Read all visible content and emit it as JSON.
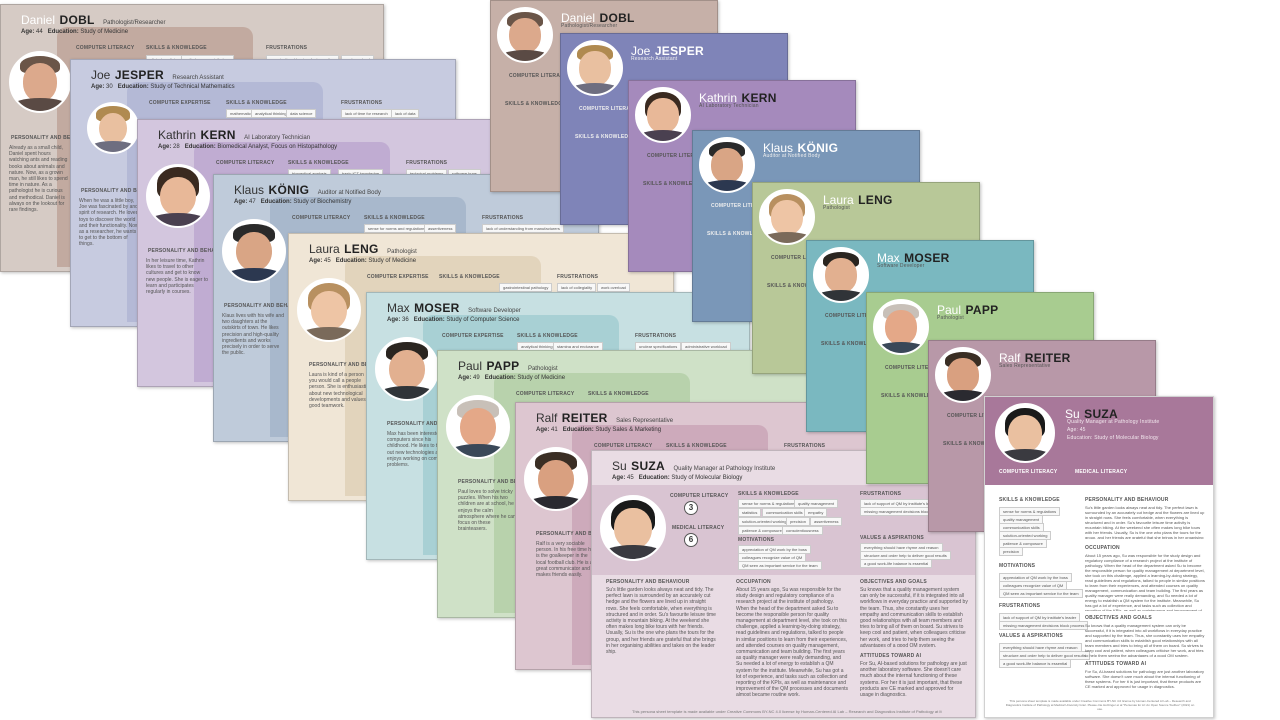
{
  "personas": [
    {
      "first": "Daniel",
      "last": "DOBL",
      "role": "Pathologist/Researcher",
      "age": "44",
      "education": "Study of Medicine"
    },
    {
      "first": "Joe",
      "last": "JESPER",
      "role": "Research Assistant",
      "age": "30",
      "education": "Study of Technical Mathematics"
    },
    {
      "first": "Kathrin",
      "last": "KERN",
      "role": "AI Laboratory Technician",
      "age": "28",
      "education": "Biomedical Analyst, Focus on Histopathology"
    },
    {
      "first": "Klaus",
      "last": "KÖNIG",
      "role": "Auditor at Notified Body",
      "age": "47",
      "education": "Study of Biochemistry"
    },
    {
      "first": "Laura",
      "last": "LENG",
      "role": "Pathologist",
      "age": "45",
      "education": "Study of Medicine"
    },
    {
      "first": "Max",
      "last": "MOSER",
      "role": "Software Developer",
      "age": "36",
      "education": "Study of Computer Science"
    },
    {
      "first": "Paul",
      "last": "PAPP",
      "role": "Pathologist",
      "age": "49",
      "education": "Study of Medicine"
    },
    {
      "first": "Ralf",
      "last": "REITER",
      "role": "Sales Representative",
      "age": "41",
      "education": "Study Sales & Marketing"
    },
    {
      "first": "Su",
      "last": "SUZA",
      "role": "Quality Manager at Pathology Institute",
      "age": "45",
      "education": "Study of Molecular Biology"
    }
  ],
  "labels": {
    "age": "Age:",
    "education": "Education:",
    "computer_literacy": "COMPUTER LITERACY",
    "computer_expertise": "COMPUTER EXPERTISE",
    "medical_literacy": "MEDICAL LITERACY",
    "skills": "SKILLS & KNOWLEDGE",
    "frustrations": "FRUSTRATIONS",
    "personality": "PERSONALITY AND BEHAVIOUR",
    "occupation": "OCCUPATION",
    "motivations": "MOTIVATIONS",
    "values": "VALUES & ASPIRATIONS",
    "objectives": "OBJECTIVES AND GOALS",
    "attitudes": "ATTITUDES TOWARD AI"
  },
  "tags": {
    "dobl_skills": [
      "clinical medicine",
      "pathology - specialty lung"
    ],
    "dobl_frustrations": [
      "organisational barriers for innovation",
      "work overload"
    ],
    "jesper_skills": [
      "mathematics",
      "analytical thinking",
      "data science"
    ],
    "jesper_frustrations": [
      "lack of time for research",
      "lack of data"
    ],
    "kern_skills": [
      "biomedical analysis",
      "basic ICT knowledge"
    ],
    "kern_frustrations": [
      "technical problems",
      "software bugs"
    ],
    "konig_skills": [
      "sense for norms and regulations",
      "assertiveness"
    ],
    "konig_frustrations": [
      "lack of understanding from manufacturers"
    ],
    "leng_skills": [
      "gastrointestinal pathology"
    ],
    "leng_frustrations": [
      "lack of collegiality",
      "work overload"
    ],
    "moser_skills": [
      "analytical thinking",
      "stamina and endurance"
    ],
    "moser_frustrations": [
      "unclear specifications",
      "administrative workload"
    ],
    "suza_skills": [
      "sense for norms & regulations",
      "quality management",
      "statistics",
      "communication skills",
      "empathy",
      "solution-oriented working",
      "precision",
      "assertiveness",
      "patience & composure",
      "conscientiousness"
    ],
    "suza_frustrations": [
      "lack of support of QM by institute's leader",
      "missing management decisions block process"
    ],
    "suza_motivations": [
      "appreciation of QM work by the boss",
      "colleagues recognize value of QM",
      "QM seen as important service for the team"
    ],
    "suza_values": [
      "everything should have rhyme and reason",
      "structure and order help to deliver good results",
      "a good work-life balance is essential"
    ]
  },
  "gauges": {
    "suza_computer": "3",
    "suza_medical": "6"
  },
  "texts": {
    "dobl_personality": "Already as a small child, Daniel spent hours watching ants and reading books about animals and nature. Now, as a grown man, he still likes to spend time in nature. As a pathologist he is curious and methodical. Daniel is always on the lookout for rare findings.",
    "jesper_personality": "When he was a little boy, Joe was fascinated by and spirit of research. He loved toys to discover the world and their functionality. Now, as a researcher, he wants to get to the bottom of things.",
    "kern_personality": "In her leisure time, Kathrin likes to travel to other cultures and get to know new people. She is eager to learn and participates regularly in courses.",
    "konig_personality": "Klaus lives with his wife and two daughters at the outskirts of town. He likes precision and high-quality ingredients and works precisely in order to serve the public.",
    "leng_personality": "Laura is kind of a person you would call a people person. She is enthusiastic about new technological developments and values good teamwork.",
    "moser_personality": "Max has been interested in computers since his childhood. He likes to try out new technologies and enjoys working on complex problems.",
    "papp_personality": "Paul loves to solve tricky puzzles. When his two children are at school, he enjoys the calm atmosphere where he can focus on these brainteasers.",
    "reiter_personality": "Ralf is a very sociable person. In his free time he is the goalkeeper in the local football club. He is a great communicator and makes friends easily.",
    "suza_personality": "Su's little garden looks always neat and tidy. The perfect lawn is surrounded by an accurately cut hedge and the flowers are lined up in straight rows. She feels comfortable, when everything is structured and in order. Su's favourite leisure time activity is mountain biking. At the weekend she often makes long bike tours with her friends. Usually, Su is the one who plans the tours for the group, and her friends are grateful that she brings in her organising abilities and takes on the leader ship.",
    "suza_occupation": "About 15 years ago, Su was responsible for the study design and regulatory compliance of a research project at the institute of pathology. When the head of the department asked Su to become the responsible person for quality management at department level, she took on this challenge, applied a learning-by-doing strategy, read guidelines and regulations, talked to people in similar positions to learn from their experiences, and attended courses on quality management, communication and team building. The first years as quality manager were really demanding, and Su needed a lot of energy to establish a QM system for the institute. Meanwhile, Su has got a lot of experience, and tasks such as collection and reporting of the KPIs, as well as maintenance and improvement of the QM processes and documents almost became routine work.",
    "suza_objectives": "Su knows that a quality management system can only be successful, if it is integrated into all workflows in everyday practice and supported by the team. Thus, she constantly uses her empathy and communication skills to establish good relationships with all team members and tries to bring all of them on board. Su strives to keep cool and patient, when colleagues criticise her work, and tries to help them seeing the advantages of a good QM system.",
    "suza_attitudes": "For Su, AI-based solutions for pathology are just another laboratory software. She doesn't care much about the internal functioning of these systems. For her it is just important, that these products are CE marked and approved for usage in diagnostics.",
    "footer": "This persona sheet template is made available under Creative Commons BY-NC 4.0 license by Human-Centered AI Lab – Research and Diagnostics Institute of Pathology at Medical University Graz. Please cite Holzinger et al \"Personas for AI: An Open Source Toolbox\" (2021) on use."
  }
}
